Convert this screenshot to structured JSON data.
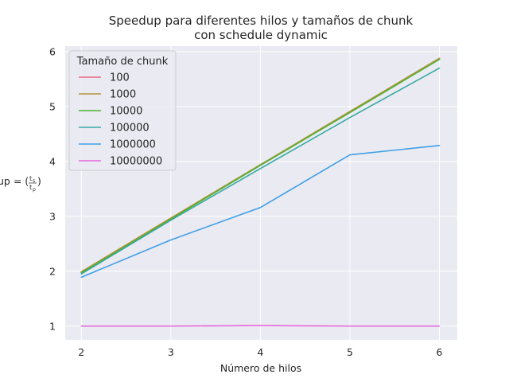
{
  "chart_data": {
    "type": "line",
    "title_line1": "Speedup para diferentes hilos y tamaños de chunk",
    "title_line2": "con schedule dynamic",
    "xlabel": "Número de hilos",
    "ylabel": "Speedup = (t_s / t_p)",
    "x": [
      2,
      3,
      4,
      5,
      6
    ],
    "xlim": [
      1.82,
      6.2
    ],
    "ylim": [
      0.75,
      6.1
    ],
    "xticks": [
      "2",
      "3",
      "4",
      "5",
      "6"
    ],
    "yticks": [
      "1",
      "2",
      "3",
      "4",
      "5",
      "6"
    ],
    "grid": true,
    "legend": {
      "title": "Tamaño de chunk",
      "placement": "top-left"
    },
    "series": [
      {
        "name": "100",
        "color": "#e8677d",
        "values": [
          1.98,
          2.96,
          3.93,
          4.9,
          5.87
        ]
      },
      {
        "name": "1000",
        "color": "#b8933a",
        "values": [
          1.99,
          2.97,
          3.94,
          4.91,
          5.88
        ]
      },
      {
        "name": "10000",
        "color": "#4fb133",
        "values": [
          1.97,
          2.95,
          3.93,
          4.89,
          5.86
        ]
      },
      {
        "name": "100000",
        "color": "#37aaa3",
        "values": [
          1.95,
          2.93,
          3.87,
          4.8,
          5.7
        ]
      },
      {
        "name": "1000000",
        "color": "#3f9fe6",
        "values": [
          1.89,
          2.57,
          3.16,
          4.12,
          4.29
        ]
      },
      {
        "name": "10000000",
        "color": "#e667dd",
        "values": [
          1.0,
          1.0,
          1.01,
          1.0,
          1.0
        ]
      }
    ]
  }
}
